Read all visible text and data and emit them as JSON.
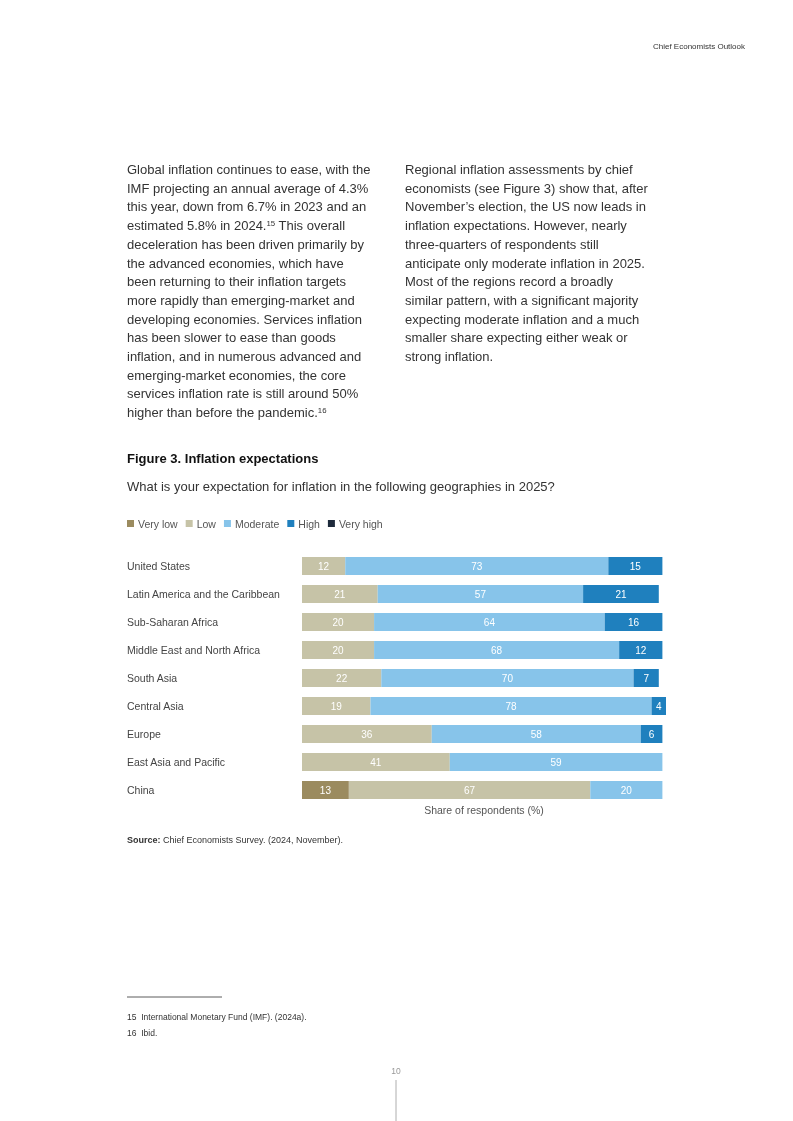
{
  "chart_data": {
    "type": "bar",
    "orientation": "horizontal",
    "stacked": true,
    "title": "Figure 3. Inflation expectations",
    "subtitle": "What is your expectation for inflation in the following geographies in 2025?",
    "xlabel": "Share of respondents (%)",
    "categories": [
      "United States",
      "Latin America and the Caribbean",
      "Sub-Saharan Africa",
      "Middle East and North Africa",
      "South Asia",
      "Central Asia",
      "Europe",
      "East Asia and Pacific",
      "China"
    ],
    "series": [
      {
        "name": "Very low",
        "color": "#9b8b5f",
        "values": [
          null,
          null,
          null,
          null,
          null,
          null,
          null,
          null,
          13
        ]
      },
      {
        "name": "Low",
        "color": "#c6c3a7",
        "values": [
          12,
          21,
          20,
          20,
          22,
          19,
          36,
          41,
          67
        ]
      },
      {
        "name": "Moderate",
        "color": "#87c4ea",
        "values": [
          73,
          57,
          64,
          68,
          70,
          78,
          58,
          59,
          20
        ]
      },
      {
        "name": "High",
        "color": "#1f80be",
        "values": [
          15,
          21,
          16,
          12,
          7,
          4,
          6,
          null,
          null
        ]
      },
      {
        "name": "Very high",
        "color": "#1d2a3b",
        "values": [
          null,
          null,
          null,
          null,
          null,
          null,
          null,
          null,
          null
        ]
      }
    ],
    "xlim": [
      0,
      101
    ],
    "tick_labels": "y",
    "data_labels": true,
    "legend": "top left",
    "annotations": [
      "Chief Economists Outlook",
      "Global inflation continues to ease, with the IMF projecting an annual average of 4.3% this year, down from 6.7% in 2023 and an estimated 5.8% in 2024.$^{15}$ This overall deceleration has been driven primarily by the advanced economies, which have been returning to their inflation targets more rapidly than emerging-market and developing economies. Services inflation has been slower to ease than goods inflation, and in numerous advanced and emerging-market economies, the core services inflation rate is still around 50% higher than before the pandemic.$^{16}$",
      "Regional inflation assessments by chief economists (see Figure 3) show that, after November’s election, the US now leads in inflation expectations. However, nearly three-quarters of respondents still anticipate only moderate inflation in 2025. Most of the regions record a broadly similar pattern, with a significant majority expecting moderate inflation and a much smaller share expecting either weak or strong inflation.",
      "Source: Chief Economists Survey. (2024, November).",
      "15  International Monetary Fund (IMF). (2024a).",
      "16  Ibid.",
      "10"
    ]
  }
}
